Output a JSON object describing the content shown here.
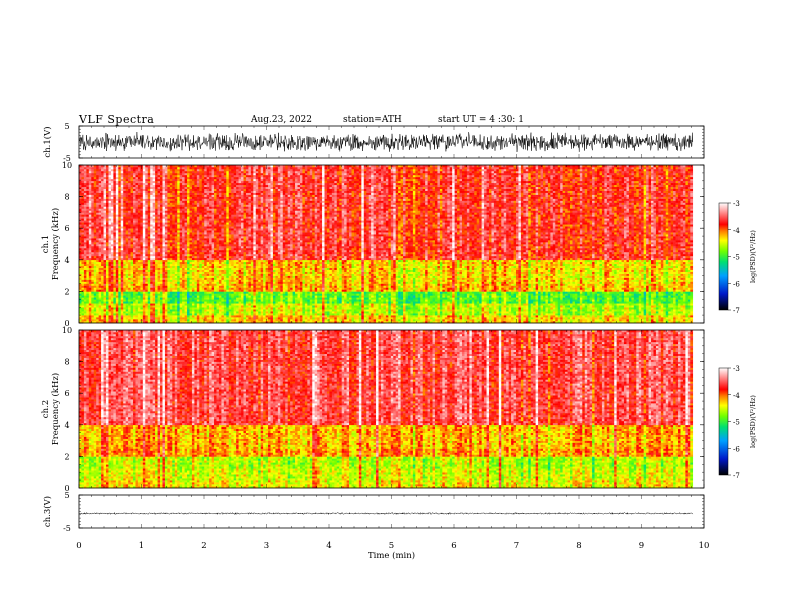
{
  "header": {
    "title": "VLF  Spectra",
    "date": "Aug.23, 2022",
    "station": "station=ATH",
    "start": "start  UT  =   4  :30: 1"
  },
  "chart_data": [
    {
      "type": "line",
      "name": "ch1-waveform",
      "ylabel": "ch.1(V)",
      "ylim": [
        -5,
        5
      ],
      "yticks": [
        "5",
        "-5"
      ],
      "xlim": [
        0,
        10
      ],
      "x_data_range": [
        0,
        9.82
      ],
      "amplitude_envelope_v": 3.2,
      "color": "#000000"
    },
    {
      "type": "heatmap",
      "name": "ch1-spectrogram",
      "ylabel_channel": "ch.1",
      "ylabel": "Frequency  (kHz)",
      "ylim": [
        0,
        10
      ],
      "yticks": [
        "0",
        "2",
        "4",
        "6",
        "8",
        "10"
      ],
      "xlim": [
        0,
        10
      ],
      "x_data_range": [
        0,
        9.82
      ],
      "colorbar": {
        "label": "log(PSD)(V²/Hz)",
        "range": [
          -7,
          -3
        ],
        "ticks": [
          "-3",
          "-4",
          "-5",
          "-6",
          "-7"
        ]
      },
      "bands_log_psd": [
        {
          "f": [
            0.0,
            0.5
          ],
          "level": -4.3
        },
        {
          "f": [
            0.5,
            1.2
          ],
          "level": -4.6
        },
        {
          "f": [
            1.2,
            2.0
          ],
          "level": -4.9
        },
        {
          "f": [
            2.0,
            2.5
          ],
          "level": -4.2
        },
        {
          "f": [
            2.5,
            4.0
          ],
          "level": -4.3
        },
        {
          "f": [
            4.0,
            10.0
          ],
          "level": -3.7
        }
      ]
    },
    {
      "type": "heatmap",
      "name": "ch2-spectrogram",
      "ylabel_channel": "ch.2",
      "ylabel": "Frequency  (kHz)",
      "ylim": [
        0,
        10
      ],
      "yticks": [
        "0",
        "2",
        "4",
        "6",
        "8",
        "10"
      ],
      "xlim": [
        0,
        10
      ],
      "x_data_range": [
        0,
        9.82
      ],
      "colorbar": {
        "label": "log(PSD)(V²/Hz)",
        "range": [
          -7,
          -3
        ],
        "ticks": [
          "-3",
          "-4",
          "-5",
          "-6",
          "-7"
        ]
      },
      "bands_log_psd": [
        {
          "f": [
            0.0,
            0.5
          ],
          "level": -4.4
        },
        {
          "f": [
            0.5,
            1.2
          ],
          "level": -4.5
        },
        {
          "f": [
            1.2,
            2.0
          ],
          "level": -4.6
        },
        {
          "f": [
            2.0,
            2.5
          ],
          "level": -4.1
        },
        {
          "f": [
            2.5,
            4.0
          ],
          "level": -4.2
        },
        {
          "f": [
            4.0,
            10.0
          ],
          "level": -3.6
        }
      ]
    },
    {
      "type": "line",
      "name": "ch3-waveform",
      "ylabel": "ch.3(V)",
      "ylim": [
        -5,
        5
      ],
      "yticks": [
        "5",
        "-5"
      ],
      "xlim": [
        0,
        10
      ],
      "x_data_range": [
        0,
        9.82
      ],
      "baseline_v": -0.6,
      "amplitude_envelope_v": 0.3,
      "color": "#000000"
    }
  ],
  "x_axis": {
    "label": "Time  (min)",
    "ticks": [
      "0",
      "1",
      "2",
      "3",
      "4",
      "5",
      "6",
      "7",
      "8",
      "9",
      "10"
    ]
  }
}
